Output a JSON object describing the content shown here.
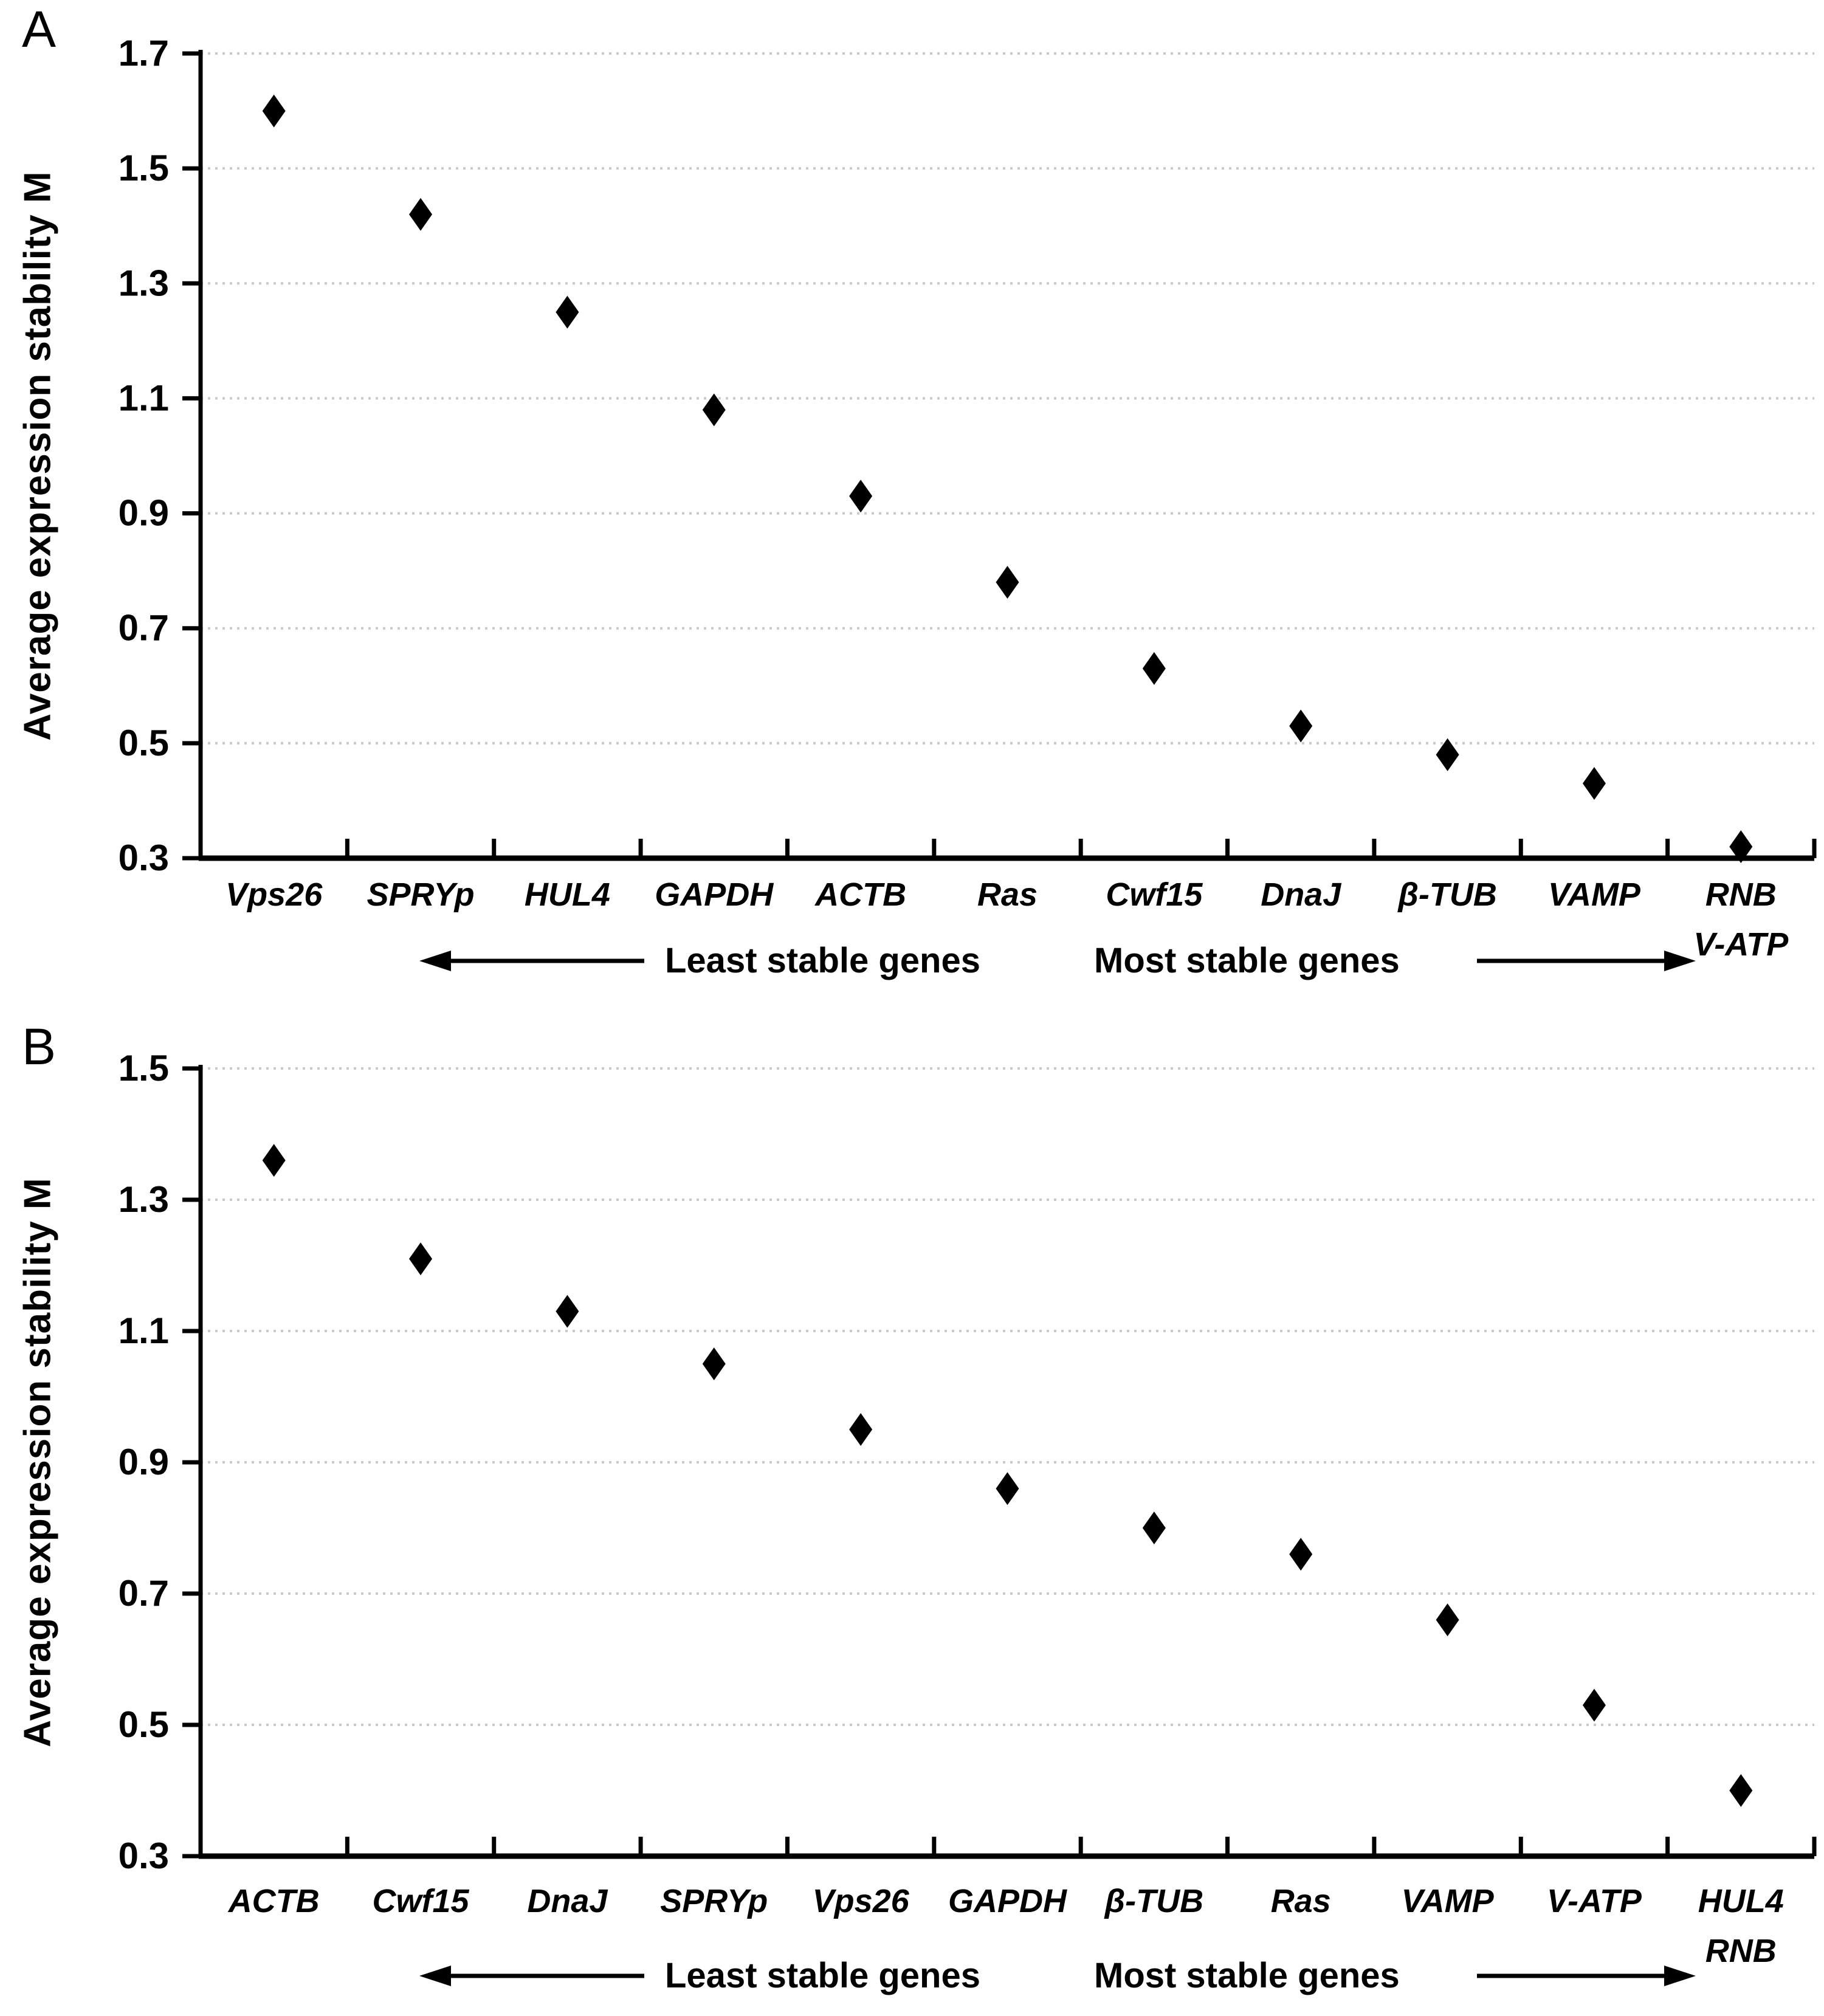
{
  "figure": {
    "background": "#ffffff",
    "marker_color": "#000000",
    "axis_color": "#000000",
    "gridline_color": "#c9c9c9",
    "marker_shape": "diamond"
  },
  "chart_data": [
    {
      "type": "scatter",
      "panel_label": "A",
      "ylabel": "Average expression stability M",
      "xlabel": "",
      "ylim": [
        0.3,
        1.7
      ],
      "yticks": [
        0.3,
        0.5,
        0.7,
        0.9,
        1.1,
        1.3,
        1.5,
        1.7
      ],
      "grid": "horizontal-dotted",
      "legend": "none",
      "categories": [
        [
          "Vps26"
        ],
        [
          "SPRYp"
        ],
        [
          "HUL4"
        ],
        [
          "GAPDH"
        ],
        [
          "ACTB"
        ],
        [
          "Ras"
        ],
        [
          "Cwf15"
        ],
        [
          "DnaJ"
        ],
        [
          "β-TUB"
        ],
        [
          "VAMP"
        ],
        [
          "RNB",
          "V-ATP"
        ]
      ],
      "values": [
        1.6,
        1.42,
        1.25,
        1.08,
        0.93,
        0.78,
        0.63,
        0.53,
        0.48,
        0.43,
        0.32
      ],
      "annotations": [
        {
          "text": "Least stable genes",
          "arrow": "left"
        },
        {
          "text": "Most stable genes",
          "arrow": "right"
        }
      ]
    },
    {
      "type": "scatter",
      "panel_label": "B",
      "ylabel": "Average expression stability M",
      "xlabel": "",
      "ylim": [
        0.3,
        1.5
      ],
      "yticks": [
        0.3,
        0.5,
        0.7,
        0.9,
        1.1,
        1.3,
        1.5
      ],
      "grid": "horizontal-dotted",
      "legend": "none",
      "categories": [
        [
          "ACTB"
        ],
        [
          "Cwf15"
        ],
        [
          "DnaJ"
        ],
        [
          "SPRYp"
        ],
        [
          "Vps26"
        ],
        [
          "GAPDH"
        ],
        [
          "β-TUB"
        ],
        [
          "Ras"
        ],
        [
          "VAMP"
        ],
        [
          "V-ATP"
        ],
        [
          "HUL4",
          "RNB"
        ]
      ],
      "values": [
        1.36,
        1.21,
        1.13,
        1.05,
        0.95,
        0.86,
        0.8,
        0.76,
        0.66,
        0.53,
        0.4
      ],
      "annotations": [
        {
          "text": "Least stable genes",
          "arrow": "left"
        },
        {
          "text": "Most stable genes",
          "arrow": "right"
        }
      ]
    }
  ]
}
